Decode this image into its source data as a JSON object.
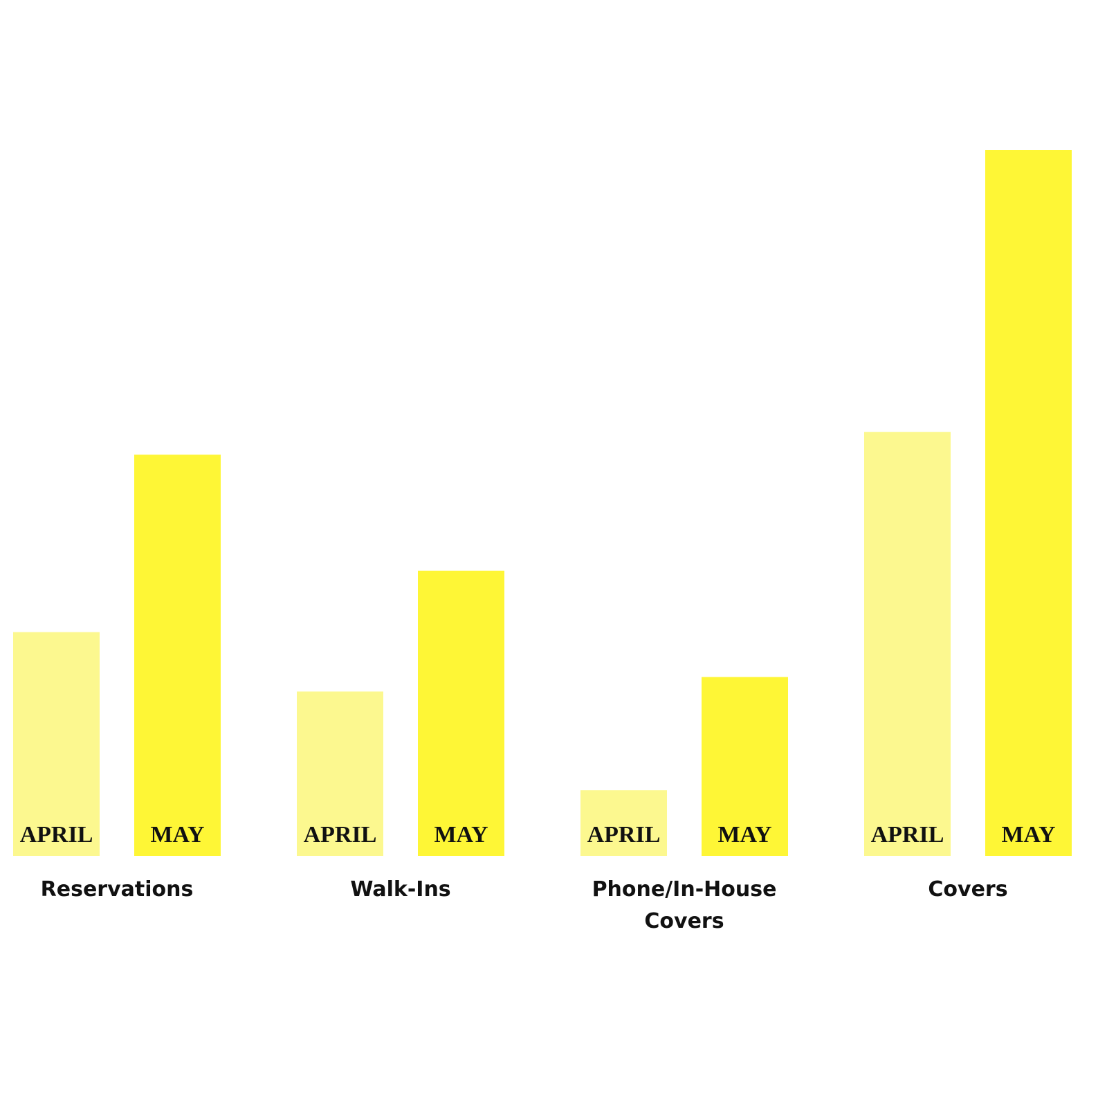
{
  "chart_data": {
    "type": "bar",
    "categories": [
      "Reservations",
      "Walk-Ins",
      "Phone/In-House Covers",
      "Covers"
    ],
    "series": [
      {
        "name": "APRIL",
        "color": "#fcf88f",
        "values": [
          324,
          238,
          95,
          614
        ]
      },
      {
        "name": "MAY",
        "color": "#fef636",
        "values": [
          581,
          413,
          259,
          1022
        ]
      }
    ],
    "ylim": [
      0,
      1022
    ]
  }
}
